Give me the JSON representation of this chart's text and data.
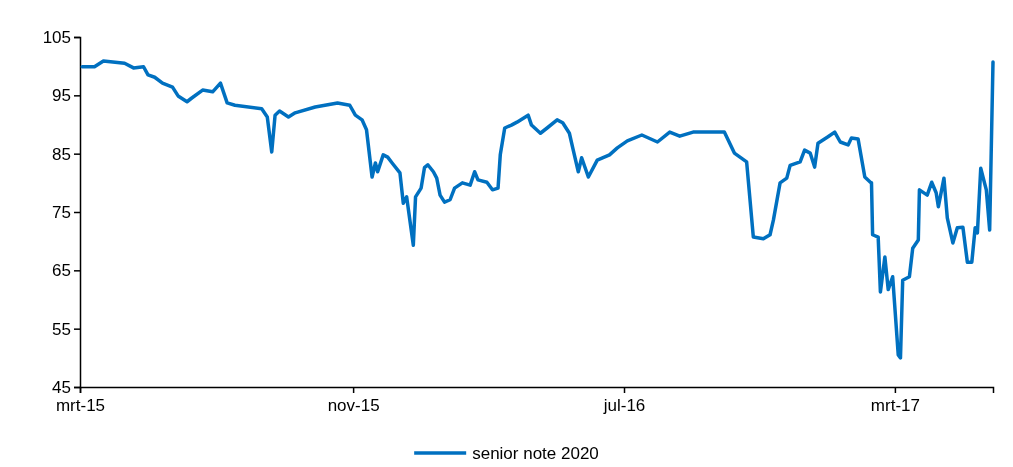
{
  "chart_data": {
    "type": "line",
    "x": [
      "2015-03-03",
      "2015-03-14",
      "2015-03-22",
      "2015-04-10",
      "2015-04-18",
      "2015-04-27",
      "2015-05-01",
      "2015-05-07",
      "2015-05-14",
      "2015-05-23",
      "2015-05-28",
      "2015-06-05",
      "2015-06-09",
      "2015-06-19",
      "2015-06-28",
      "2015-07-05",
      "2015-07-11",
      "2015-07-18",
      "2015-08-11",
      "2015-08-16",
      "2015-08-20",
      "2015-08-23",
      "2015-08-27",
      "2015-09-04",
      "2015-09-10",
      "2015-09-28",
      "2015-10-18",
      "2015-10-29",
      "2015-11-03",
      "2015-11-09",
      "2015-11-13",
      "2015-11-18",
      "2015-11-21",
      "2015-11-23",
      "2015-11-28",
      "2015-12-02",
      "2015-12-06",
      "2015-12-13",
      "2015-12-16",
      "2015-12-19",
      "2015-12-25",
      "2015-12-27",
      "2016-01-01",
      "2016-01-04",
      "2016-01-07",
      "2016-01-12",
      "2016-01-15",
      "2016-01-18",
      "2016-01-22",
      "2016-01-27",
      "2016-01-31",
      "2016-02-07",
      "2016-02-14",
      "2016-02-18",
      "2016-02-21",
      "2016-02-29",
      "2016-03-05",
      "2016-03-10",
      "2016-03-12",
      "2016-03-16",
      "2016-03-22",
      "2016-03-27",
      "2016-04-06",
      "2016-04-09",
      "2016-04-17",
      "2016-04-23",
      "2016-05-02",
      "2016-05-07",
      "2016-05-13",
      "2016-05-16",
      "2016-05-21",
      "2016-05-24",
      "2016-05-30",
      "2016-06-07",
      "2016-06-18",
      "2016-06-25",
      "2016-07-04",
      "2016-07-17",
      "2016-07-31",
      "2016-08-11",
      "2016-08-20",
      "2016-09-01",
      "2016-09-29",
      "2016-10-08",
      "2016-10-19",
      "2016-10-25",
      "2016-11-03",
      "2016-11-09",
      "2016-11-12",
      "2016-11-18",
      "2016-11-24",
      "2016-11-27",
      "2016-12-06",
      "2016-12-10",
      "2016-12-15",
      "2016-12-19",
      "2016-12-22",
      "2016-12-31",
      "2017-01-06",
      "2017-01-11",
      "2017-01-18",
      "2017-01-21",
      "2017-01-27",
      "2017-02-02",
      "2017-02-07",
      "2017-02-08",
      "2017-02-09",
      "2017-02-14",
      "2017-02-16",
      "2017-02-20",
      "2017-02-23",
      "2017-02-27",
      "2017-03-04",
      "2017-03-06",
      "2017-03-08",
      "2017-03-14",
      "2017-03-17",
      "2017-03-22",
      "2017-03-23",
      "2017-03-30",
      "2017-04-03",
      "2017-04-07",
      "2017-04-09",
      "2017-04-14",
      "2017-04-17",
      "2017-04-22",
      "2017-04-26",
      "2017-05-01",
      "2017-05-05",
      "2017-05-09",
      "2017-05-12",
      "2017-05-14",
      "2017-05-17",
      "2017-05-22",
      "2017-05-25",
      "2017-05-28"
    ],
    "series": [
      {
        "name": "senior note 2020",
        "color": "#0070c0",
        "values": [
          99.9,
          99.9,
          100.9,
          100.5,
          99.7,
          99.9,
          98.5,
          98.1,
          97.1,
          96.4,
          94.9,
          93.9,
          94.5,
          95.9,
          95.6,
          97.1,
          93.7,
          93.3,
          92.7,
          91.3,
          85.3,
          91.6,
          92.3,
          91.3,
          92.0,
          93.0,
          93.7,
          93.3,
          91.6,
          90.8,
          89.1,
          81.0,
          83.4,
          81.9,
          84.8,
          84.4,
          83.4,
          81.7,
          76.5,
          77.6,
          69.3,
          77.6,
          79.1,
          82.6,
          83.1,
          81.9,
          80.8,
          77.9,
          76.7,
          77.1,
          79.1,
          80.0,
          79.6,
          81.9,
          80.5,
          80.1,
          78.8,
          79.1,
          84.8,
          89.4,
          89.9,
          90.4,
          91.6,
          89.9,
          88.5,
          89.4,
          90.8,
          90.3,
          88.5,
          86.0,
          81.9,
          84.3,
          81.0,
          83.9,
          84.8,
          86.0,
          87.2,
          88.2,
          87.0,
          88.7,
          88.0,
          88.7,
          88.7,
          85.1,
          83.6,
          70.7,
          70.4,
          71.1,
          73.6,
          80.0,
          80.8,
          83.0,
          83.6,
          85.6,
          85.1,
          82.7,
          86.8,
          87.9,
          88.7,
          87.0,
          86.5,
          87.7,
          87.5,
          81.0,
          80.1,
          80.0,
          71.1,
          70.7,
          61.3,
          67.3,
          61.7,
          63.9,
          50.5,
          50.0,
          63.3,
          63.9,
          68.8,
          70.2,
          78.8,
          77.9,
          80.1,
          78.3,
          75.9,
          80.8,
          74.0,
          69.7,
          72.3,
          72.4,
          66.4,
          66.4,
          72.3,
          71.4,
          82.5,
          78.8,
          71.9,
          100.7
        ]
      }
    ],
    "xlim": [
      "2015-03-01",
      "2017-05-28"
    ],
    "xticks": [
      {
        "value": "2015-03-01",
        "label": "mrt-15"
      },
      {
        "value": "2015-11-01",
        "label": "nov-15"
      },
      {
        "value": "2016-07-01",
        "label": "jul-16"
      },
      {
        "value": "2017-03-01",
        "label": "mrt-17"
      }
    ],
    "ylim": [
      45,
      105
    ],
    "yticks": [
      45,
      55,
      65,
      75,
      85,
      95,
      105
    ],
    "grid": false,
    "legend": "bottom",
    "marker": "none",
    "line_style": "solid"
  }
}
